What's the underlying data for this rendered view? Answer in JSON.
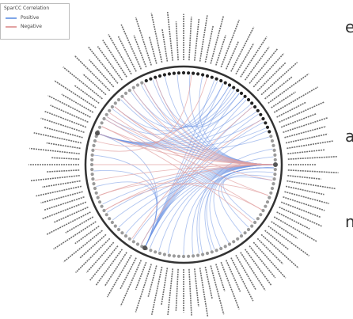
{
  "legend": {
    "title": "SparCC Correlation",
    "items": [
      {
        "label": "Positive",
        "color": "#7fa6e8"
      },
      {
        "label": "Negative",
        "color": "#e3a3a3"
      }
    ]
  },
  "side_text": [
    "e",
    "a",
    "n"
  ],
  "colors": {
    "positive": "#6f96e4",
    "negative": "#e1a0a0",
    "ring": "#333333",
    "node_dark": "#222222",
    "node_light": "#9a9a9a",
    "label": "#555555"
  },
  "chart_data": {
    "type": "chord",
    "node_count": 120,
    "hub_nodes": [
      {
        "angle_deg": 0,
        "role": "right hub"
      },
      {
        "angle_deg": 115,
        "role": "lower-left cluster"
      },
      {
        "angle_deg": 200,
        "role": "upper-left hub"
      }
    ],
    "positive_links": [
      [
        0,
        210
      ],
      [
        0,
        218
      ],
      [
        0,
        226
      ],
      [
        0,
        234
      ],
      [
        0,
        242
      ],
      [
        0,
        250
      ],
      [
        0,
        258
      ],
      [
        0,
        266
      ],
      [
        0,
        274
      ],
      [
        0,
        282
      ],
      [
        0,
        100
      ],
      [
        0,
        106
      ],
      [
        0,
        112
      ],
      [
        0,
        118
      ],
      [
        0,
        124
      ],
      [
        0,
        130
      ],
      [
        0,
        136
      ],
      [
        0,
        142
      ],
      [
        0,
        148
      ],
      [
        0,
        154
      ],
      [
        2,
        60
      ],
      [
        2,
        66
      ],
      [
        2,
        72
      ],
      [
        2,
        78
      ],
      [
        2,
        84
      ],
      [
        2,
        90
      ],
      [
        115,
        290
      ],
      [
        115,
        296
      ],
      [
        115,
        302
      ],
      [
        115,
        308
      ],
      [
        115,
        314
      ],
      [
        115,
        320
      ],
      [
        115,
        326
      ],
      [
        115,
        332
      ],
      [
        115,
        338
      ],
      [
        115,
        200
      ],
      [
        115,
        186
      ],
      [
        115,
        176
      ],
      [
        115,
        166
      ],
      [
        200,
        300
      ],
      [
        200,
        306
      ],
      [
        200,
        312
      ],
      [
        200,
        318
      ],
      [
        200,
        324
      ],
      [
        200,
        330
      ],
      [
        200,
        336
      ],
      [
        200,
        342
      ],
      [
        212,
        292
      ],
      [
        220,
        296
      ],
      [
        228,
        300
      ],
      [
        236,
        304
      ],
      [
        244,
        308
      ],
      [
        252,
        312
      ],
      [
        5,
        50
      ],
      [
        8,
        44
      ],
      [
        10,
        38
      ],
      [
        350,
        80
      ],
      [
        355,
        70
      ]
    ],
    "negative_links": [
      [
        0,
        200
      ],
      [
        0,
        205
      ],
      [
        0,
        212
      ],
      [
        0,
        220
      ],
      [
        0,
        228
      ],
      [
        0,
        236
      ],
      [
        0,
        244
      ],
      [
        0,
        252
      ],
      [
        0,
        150
      ],
      [
        0,
        160
      ],
      [
        0,
        170
      ],
      [
        0,
        180
      ],
      [
        205,
        40
      ],
      [
        210,
        30
      ],
      [
        215,
        20
      ],
      [
        220,
        10
      ],
      [
        150,
        20
      ],
      [
        160,
        30
      ],
      [
        118,
        330
      ],
      [
        125,
        320
      ],
      [
        195,
        285
      ],
      [
        190,
        275
      ]
    ]
  }
}
